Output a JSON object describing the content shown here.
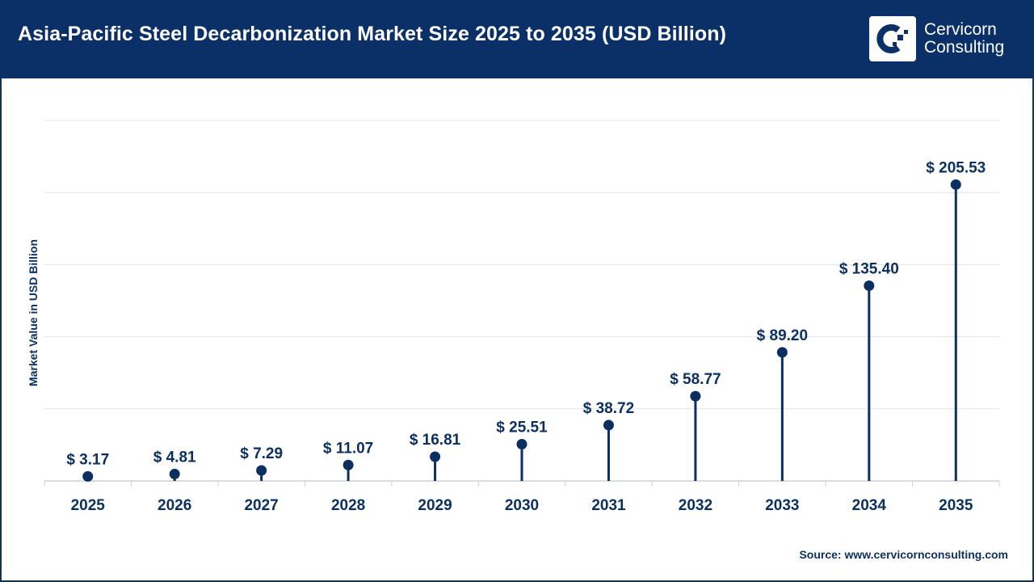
{
  "header": {
    "title": "Asia-Pacific Steel Decarbonization Market Size 2025 to 2035 (USD Billion)",
    "logo": {
      "line1": "Cervicorn",
      "line2": "Consulting"
    }
  },
  "source": "Source: www.cervicornconsulting.com",
  "colors": {
    "header": "#0b3068",
    "marker": "#0b2f5e",
    "grid": "#e3e3e3"
  },
  "chart_data": {
    "type": "lollipop",
    "title": "Asia-Pacific Steel Decarbonization Market Size 2025 to 2035 (USD Billion)",
    "ylabel": "Market Value in USD Billion",
    "xlabel": "",
    "categories": [
      "2025",
      "2026",
      "2027",
      "2028",
      "2029",
      "2030",
      "2031",
      "2032",
      "2033",
      "2034",
      "2035"
    ],
    "values": [
      3.17,
      4.81,
      7.29,
      11.07,
      16.81,
      25.51,
      38.72,
      58.77,
      89.2,
      135.4,
      205.53
    ],
    "data_labels": [
      "$ 3.17",
      "$ 4.81",
      "$ 7.29",
      "$ 11.07",
      "$ 16.81",
      "$ 25.51",
      "$ 38.72",
      "$ 58.77",
      "$ 89.20",
      "$ 135.40",
      "$ 205.53"
    ],
    "ylim": [
      0,
      250
    ],
    "grid": true,
    "gridline_step": 50
  }
}
